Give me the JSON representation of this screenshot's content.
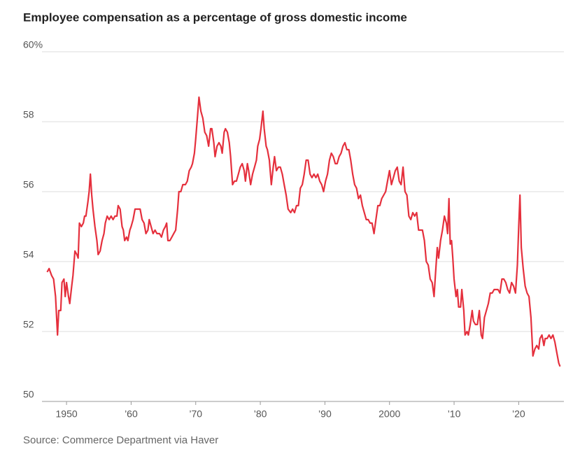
{
  "chart_data": {
    "type": "line",
    "title": "Employee compensation as a percentage of gross domestic income",
    "source": "Source: Commerce Department via Haver",
    "xlim": [
      1946.2,
      2027
    ],
    "ylim": [
      50,
      60
    ],
    "yticks": [
      50,
      52,
      54,
      56,
      58,
      {
        "value": 60,
        "label": "60%"
      }
    ],
    "xticks": [
      {
        "value": 1950,
        "label": "1950"
      },
      {
        "value": 1960,
        "label": "’60"
      },
      {
        "value": 1970,
        "label": "’70"
      },
      {
        "value": 1980,
        "label": "’80"
      },
      {
        "value": 1990,
        "label": "’90"
      },
      {
        "value": 2000,
        "label": "2000"
      },
      {
        "value": 2010,
        "label": "’10"
      },
      {
        "value": 2020,
        "label": "’20"
      }
    ],
    "grid": true,
    "series": [
      {
        "color": "#e5303d",
        "x": [
          1947.0,
          1947.3,
          1947.7,
          1948.0,
          1948.3,
          1948.6,
          1948.8,
          1949.1,
          1949.3,
          1949.6,
          1949.8,
          1950.0,
          1950.3,
          1950.5,
          1950.8,
          1951.0,
          1951.3,
          1951.6,
          1951.8,
          1952.0,
          1952.3,
          1952.6,
          1952.8,
          1953.0,
          1953.3,
          1953.5,
          1953.7,
          1953.9,
          1954.1,
          1954.4,
          1954.7,
          1954.9,
          1955.2,
          1955.5,
          1955.8,
          1956.0,
          1956.3,
          1956.6,
          1956.9,
          1957.2,
          1957.5,
          1957.8,
          1958.0,
          1958.3,
          1958.6,
          1958.8,
          1959.0,
          1959.3,
          1959.5,
          1959.8,
          1960.0,
          1960.3,
          1960.6,
          1961.0,
          1961.4,
          1961.7,
          1962.0,
          1962.3,
          1962.6,
          1962.8,
          1963.1,
          1963.4,
          1963.7,
          1964.0,
          1964.4,
          1964.7,
          1965.0,
          1965.3,
          1965.5,
          1965.7,
          1966.0,
          1966.3,
          1966.6,
          1966.9,
          1967.2,
          1967.4,
          1967.7,
          1968.0,
          1968.4,
          1968.7,
          1969.0,
          1969.3,
          1969.5,
          1969.8,
          1970.0,
          1970.3,
          1970.5,
          1970.8,
          1971.1,
          1971.4,
          1971.7,
          1972.0,
          1972.3,
          1972.5,
          1972.8,
          1973.0,
          1973.3,
          1973.6,
          1973.9,
          1974.1,
          1974.4,
          1974.6,
          1974.9,
          1975.2,
          1975.4,
          1975.7,
          1976.0,
          1976.3,
          1976.6,
          1976.9,
          1977.2,
          1977.5,
          1977.7,
          1978.0,
          1978.2,
          1978.5,
          1978.8,
          1979.1,
          1979.4,
          1979.6,
          1979.9,
          1980.1,
          1980.4,
          1980.6,
          1980.9,
          1981.1,
          1981.4,
          1981.7,
          1982.0,
          1982.2,
          1982.5,
          1982.8,
          1983.1,
          1983.4,
          1983.7,
          1984.0,
          1984.3,
          1984.7,
          1985.0,
          1985.3,
          1985.6,
          1985.9,
          1986.2,
          1986.5,
          1986.8,
          1987.1,
          1987.4,
          1987.7,
          1988.0,
          1988.3,
          1988.6,
          1988.9,
          1989.2,
          1989.5,
          1989.8,
          1990.1,
          1990.4,
          1990.7,
          1991.0,
          1991.3,
          1991.6,
          1991.9,
          1992.2,
          1992.5,
          1992.8,
          1993.1,
          1993.4,
          1993.7,
          1994.0,
          1994.3,
          1994.6,
          1994.9,
          1995.2,
          1995.5,
          1995.8,
          1996.1,
          1996.4,
          1996.7,
          1997.0,
          1997.3,
          1997.6,
          1997.9,
          1998.2,
          1998.5,
          1998.8,
          1999.1,
          1999.4,
          1999.7,
          2000.0,
          2000.3,
          2000.6,
          2000.9,
          2001.2,
          2001.5,
          2001.8,
          2002.1,
          2002.4,
          2002.7,
          2003.0,
          2003.3,
          2003.6,
          2003.9,
          2004.2,
          2004.5,
          2004.8,
          2005.1,
          2005.4,
          2005.7,
          2006.0,
          2006.3,
          2006.6,
          2006.9,
          2007.1,
          2007.4,
          2007.6,
          2007.9,
          2008.2,
          2008.5,
          2008.8,
          2009.0,
          2009.2,
          2009.4,
          2009.6,
          2009.8,
          2010.0,
          2010.3,
          2010.5,
          2010.7,
          2011.0,
          2011.2,
          2011.5,
          2011.7,
          2012.0,
          2012.2,
          2012.5,
          2012.8,
          2013.0,
          2013.3,
          2013.6,
          2013.9,
          2014.2,
          2014.4,
          2014.7,
          2015.0,
          2015.3,
          2015.6,
          2015.9,
          2016.2,
          2016.5,
          2016.8,
          2017.1,
          2017.4,
          2017.7,
          2018.0,
          2018.3,
          2018.6,
          2018.9,
          2019.2,
          2019.5,
          2019.8,
          2020.0,
          2020.2,
          2020.4,
          2020.7,
          2021.0,
          2021.3,
          2021.6,
          2021.9,
          2022.2,
          2022.5,
          2022.8,
          2023.1,
          2023.3,
          2023.6,
          2023.9,
          2024.1,
          2024.4,
          2024.7,
          2025.0,
          2025.3,
          2025.6,
          2025.9,
          2026.2,
          2026.4
        ],
        "values": [
          53.7,
          53.8,
          53.6,
          53.5,
          53.0,
          51.9,
          52.6,
          52.6,
          53.4,
          53.5,
          53.0,
          53.4,
          53.0,
          52.8,
          53.3,
          53.6,
          54.3,
          54.2,
          54.1,
          55.1,
          55.0,
          55.1,
          55.3,
          55.3,
          55.7,
          56.0,
          56.5,
          55.9,
          55.5,
          55.0,
          54.6,
          54.2,
          54.3,
          54.6,
          54.8,
          55.1,
          55.3,
          55.2,
          55.3,
          55.2,
          55.3,
          55.3,
          55.6,
          55.5,
          55.0,
          54.9,
          54.6,
          54.7,
          54.6,
          54.9,
          55.0,
          55.2,
          55.5,
          55.5,
          55.5,
          55.2,
          55.1,
          54.8,
          54.9,
          55.2,
          55.0,
          54.8,
          54.9,
          54.8,
          54.8,
          54.7,
          54.9,
          55.0,
          55.1,
          54.6,
          54.6,
          54.7,
          54.8,
          54.9,
          55.5,
          56.0,
          56.0,
          56.2,
          56.2,
          56.3,
          56.6,
          56.7,
          56.8,
          57.1,
          57.5,
          58.2,
          58.7,
          58.3,
          58.1,
          57.7,
          57.6,
          57.3,
          57.8,
          57.8,
          57.4,
          57.0,
          57.3,
          57.4,
          57.3,
          57.1,
          57.7,
          57.8,
          57.7,
          57.4,
          57.0,
          56.2,
          56.3,
          56.3,
          56.5,
          56.7,
          56.8,
          56.6,
          56.3,
          56.8,
          56.6,
          56.2,
          56.5,
          56.7,
          56.9,
          57.3,
          57.5,
          57.8,
          58.3,
          57.8,
          57.3,
          57.2,
          56.9,
          56.2,
          56.7,
          57.0,
          56.6,
          56.7,
          56.7,
          56.5,
          56.2,
          55.9,
          55.5,
          55.4,
          55.5,
          55.4,
          55.6,
          55.6,
          56.1,
          56.2,
          56.5,
          56.9,
          56.9,
          56.5,
          56.4,
          56.5,
          56.4,
          56.5,
          56.3,
          56.2,
          56.0,
          56.3,
          56.5,
          56.9,
          57.1,
          57.0,
          56.8,
          56.8,
          57.0,
          57.1,
          57.3,
          57.4,
          57.2,
          57.2,
          56.9,
          56.5,
          56.2,
          56.1,
          55.8,
          55.9,
          55.6,
          55.4,
          55.2,
          55.2,
          55.1,
          55.1,
          54.8,
          55.2,
          55.6,
          55.6,
          55.8,
          55.9,
          56.0,
          56.3,
          56.6,
          56.2,
          56.4,
          56.6,
          56.7,
          56.3,
          56.2,
          56.7,
          56.0,
          55.9,
          55.3,
          55.2,
          55.4,
          55.3,
          55.4,
          54.9,
          54.9,
          54.9,
          54.6,
          54.0,
          53.9,
          53.5,
          53.4,
          53.0,
          53.6,
          54.4,
          54.1,
          54.6,
          54.9,
          55.3,
          55.1,
          54.8,
          55.8,
          54.5,
          54.6,
          54.1,
          53.5,
          53.0,
          53.2,
          52.7,
          52.7,
          53.2,
          52.6,
          51.9,
          52.0,
          51.9,
          52.2,
          52.6,
          52.3,
          52.2,
          52.2,
          52.6,
          51.9,
          51.8,
          52.4,
          52.6,
          52.8,
          53.1,
          53.1,
          53.2,
          53.2,
          53.2,
          53.1,
          53.5,
          53.5,
          53.4,
          53.2,
          53.1,
          53.4,
          53.3,
          53.1,
          53.9,
          55.0,
          55.9,
          54.4,
          53.8,
          53.3,
          53.1,
          53.0,
          52.4,
          51.3,
          51.5,
          51.6,
          51.5,
          51.8,
          51.9,
          51.6,
          51.8,
          51.8,
          51.9,
          51.8,
          51.9,
          51.7,
          51.4,
          51.1,
          51.0
        ]
      }
    ]
  }
}
